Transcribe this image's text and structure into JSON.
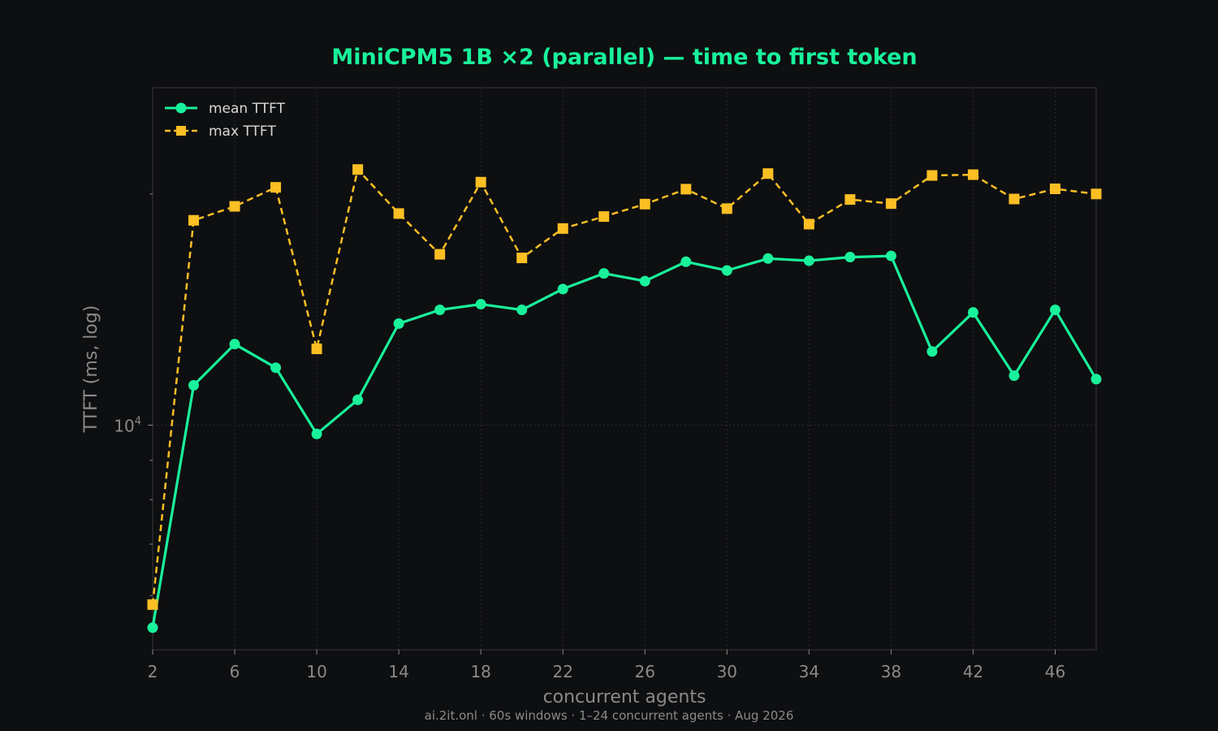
{
  "chart_data": {
    "type": "line",
    "title": "MiniCPM5 1B ×2 (parallel) — time to first token",
    "xlabel": "concurrent agents",
    "ylabel": "TTFT (ms, log)",
    "footer": "ai.2it.onl · 60s windows · 1–24 concurrent agents · Aug 2026",
    "xlim": [
      2,
      48
    ],
    "ylim": [
      5100,
      27500
    ],
    "yscale": "log",
    "xticks": [
      "2",
      "6",
      "10",
      "14",
      "18",
      "22",
      "26",
      "30",
      "34",
      "38",
      "42",
      "46"
    ],
    "yticks": [
      {
        "value": 10000,
        "base": "10",
        "exp": "4"
      }
    ],
    "grid": true,
    "legend_position": "top-left",
    "x": [
      2,
      4,
      6,
      8,
      10,
      12,
      14,
      16,
      18,
      20,
      22,
      24,
      26,
      28,
      30,
      32,
      34,
      36,
      38,
      40,
      42,
      44,
      46,
      48
    ],
    "series": [
      {
        "name": "mean TTFT",
        "color": "#19f29b",
        "marker": "circle",
        "dash": "solid",
        "values": [
          5450,
          11270,
          12750,
          11880,
          9740,
          10790,
          13560,
          14130,
          14370,
          14130,
          15040,
          15760,
          15400,
          16320,
          15900,
          16480,
          16370,
          16550,
          16610,
          12470,
          14020,
          11600,
          14130,
          11480
        ]
      },
      {
        "name": "max TTFT",
        "color": "#fbbf24",
        "marker": "square",
        "dash": "dashed",
        "values": [
          5840,
          18480,
          19270,
          20400,
          12570,
          21520,
          18860,
          16690,
          20720,
          16510,
          18030,
          18690,
          19400,
          20290,
          19140,
          21260,
          18270,
          19670,
          19430,
          21140,
          21190,
          19700,
          20310,
          20000
        ]
      }
    ]
  }
}
